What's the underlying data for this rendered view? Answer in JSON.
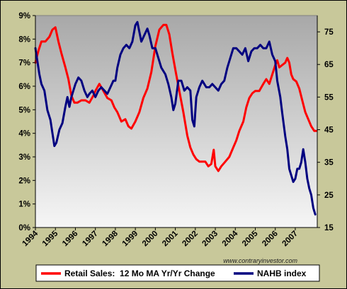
{
  "chart_data": {
    "type": "line",
    "title": "",
    "xlabel": "",
    "ylabel": "",
    "source_credit": "www.contraryinvestor.com",
    "x_range": [
      1994.0,
      2008.1
    ],
    "x_tick_labels": [
      "1994",
      "1995",
      "1996",
      "1997",
      "1998",
      "1999",
      "2000",
      "2001",
      "2002",
      "2003",
      "2004",
      "2005",
      "2006",
      "2007"
    ],
    "y_left": {
      "min": 0,
      "max": 9,
      "ticks": [
        0,
        1,
        2,
        3,
        4,
        5,
        6,
        7,
        8,
        9
      ],
      "tick_labels": [
        "0%",
        "1%",
        "2%",
        "3%",
        "4%",
        "5%",
        "6%",
        "7%",
        "8%",
        "9%"
      ]
    },
    "y_right": {
      "min": 15,
      "max": 80,
      "ticks": [
        15,
        25,
        35,
        45,
        55,
        65,
        75
      ],
      "tick_labels": [
        "15",
        "25",
        "35",
        "45",
        "55",
        "65",
        "75"
      ]
    },
    "grid": false,
    "legend_position": "bottom",
    "colors": {
      "retail": "#ff0000",
      "nahb": "#000080",
      "frame": "#c8c89a",
      "plot_top": "#a8a8a8",
      "plot_bottom": "#f6f6f6"
    },
    "series": [
      {
        "name": "Retail Sales:  12 Mo MA Yr/Yr Change",
        "axis": "left",
        "color": "#ff0000",
        "points": [
          [
            1994.0,
            7.0
          ],
          [
            1994.15,
            7.5
          ],
          [
            1994.3,
            7.9
          ],
          [
            1994.5,
            7.9
          ],
          [
            1994.7,
            8.1
          ],
          [
            1994.85,
            8.4
          ],
          [
            1995.0,
            8.5
          ],
          [
            1995.15,
            7.9
          ],
          [
            1995.3,
            7.4
          ],
          [
            1995.5,
            6.8
          ],
          [
            1995.65,
            6.3
          ],
          [
            1995.8,
            5.6
          ],
          [
            1995.95,
            5.3
          ],
          [
            1996.1,
            5.3
          ],
          [
            1996.3,
            5.4
          ],
          [
            1996.5,
            5.4
          ],
          [
            1996.7,
            5.3
          ],
          [
            1996.9,
            5.6
          ],
          [
            1997.0,
            5.8
          ],
          [
            1997.2,
            6.1
          ],
          [
            1997.4,
            5.8
          ],
          [
            1997.6,
            5.5
          ],
          [
            1997.8,
            5.4
          ],
          [
            1997.95,
            5.1
          ],
          [
            1998.1,
            4.9
          ],
          [
            1998.3,
            4.5
          ],
          [
            1998.5,
            4.6
          ],
          [
            1998.65,
            4.3
          ],
          [
            1998.8,
            4.2
          ],
          [
            1999.0,
            4.5
          ],
          [
            1999.2,
            4.9
          ],
          [
            1999.4,
            5.5
          ],
          [
            1999.6,
            5.9
          ],
          [
            1999.8,
            6.6
          ],
          [
            2000.0,
            7.7
          ],
          [
            2000.2,
            8.4
          ],
          [
            2000.4,
            8.6
          ],
          [
            2000.55,
            8.6
          ],
          [
            2000.7,
            8.2
          ],
          [
            2000.85,
            7.4
          ],
          [
            2001.0,
            6.7
          ],
          [
            2001.2,
            5.8
          ],
          [
            2001.4,
            4.9
          ],
          [
            2001.6,
            3.9
          ],
          [
            2001.75,
            3.4
          ],
          [
            2001.9,
            3.1
          ],
          [
            2002.05,
            2.9
          ],
          [
            2002.2,
            2.8
          ],
          [
            2002.35,
            2.8
          ],
          [
            2002.5,
            2.8
          ],
          [
            2002.65,
            2.6
          ],
          [
            2002.8,
            2.7
          ],
          [
            2002.92,
            3.3
          ],
          [
            2003.0,
            2.6
          ],
          [
            2003.15,
            2.4
          ],
          [
            2003.3,
            2.6
          ],
          [
            2003.5,
            2.8
          ],
          [
            2003.7,
            3.0
          ],
          [
            2003.9,
            3.4
          ],
          [
            2004.05,
            3.7
          ],
          [
            2004.2,
            4.1
          ],
          [
            2004.4,
            4.5
          ],
          [
            2004.55,
            5.1
          ],
          [
            2004.7,
            5.5
          ],
          [
            2004.85,
            5.7
          ],
          [
            2005.0,
            5.8
          ],
          [
            2005.2,
            5.8
          ],
          [
            2005.4,
            6.1
          ],
          [
            2005.55,
            6.3
          ],
          [
            2005.7,
            6.1
          ],
          [
            2005.85,
            6.5
          ],
          [
            2006.0,
            6.9
          ],
          [
            2006.1,
            7.1
          ],
          [
            2006.2,
            6.8
          ],
          [
            2006.35,
            6.9
          ],
          [
            2006.5,
            7.0
          ],
          [
            2006.6,
            7.2
          ],
          [
            2006.7,
            7.0
          ],
          [
            2006.8,
            6.5
          ],
          [
            2006.9,
            6.3
          ],
          [
            2007.05,
            6.2
          ],
          [
            2007.2,
            5.9
          ],
          [
            2007.35,
            5.4
          ],
          [
            2007.5,
            4.9
          ],
          [
            2007.65,
            4.6
          ],
          [
            2007.8,
            4.3
          ],
          [
            2007.95,
            4.1
          ],
          [
            2008.05,
            4.1
          ]
        ]
      },
      {
        "name": "NAHB index",
        "axis": "right",
        "color": "#000080",
        "points": [
          [
            1994.0,
            70
          ],
          [
            1994.1,
            66
          ],
          [
            1994.2,
            62
          ],
          [
            1994.3,
            59
          ],
          [
            1994.45,
            57
          ],
          [
            1994.6,
            51
          ],
          [
            1994.75,
            48
          ],
          [
            1994.85,
            44
          ],
          [
            1994.95,
            40
          ],
          [
            1995.05,
            41
          ],
          [
            1995.2,
            45
          ],
          [
            1995.35,
            47
          ],
          [
            1995.5,
            52
          ],
          [
            1995.6,
            55
          ],
          [
            1995.7,
            52
          ],
          [
            1995.8,
            55
          ],
          [
            1995.9,
            57
          ],
          [
            1996.0,
            59
          ],
          [
            1996.15,
            61
          ],
          [
            1996.3,
            60
          ],
          [
            1996.45,
            57
          ],
          [
            1996.6,
            55
          ],
          [
            1996.7,
            56
          ],
          [
            1996.85,
            57
          ],
          [
            1997.0,
            55
          ],
          [
            1997.15,
            57
          ],
          [
            1997.3,
            58
          ],
          [
            1997.45,
            57
          ],
          [
            1997.6,
            56
          ],
          [
            1997.75,
            58
          ],
          [
            1997.9,
            60
          ],
          [
            1998.0,
            60
          ],
          [
            1998.1,
            64
          ],
          [
            1998.25,
            68
          ],
          [
            1998.4,
            70
          ],
          [
            1998.55,
            71
          ],
          [
            1998.7,
            70
          ],
          [
            1998.85,
            72
          ],
          [
            1999.0,
            77
          ],
          [
            1999.1,
            78
          ],
          [
            1999.2,
            75
          ],
          [
            1999.3,
            72
          ],
          [
            1999.45,
            74
          ],
          [
            1999.6,
            76
          ],
          [
            1999.7,
            74
          ],
          [
            1999.85,
            70
          ],
          [
            2000.0,
            70
          ],
          [
            2000.15,
            67
          ],
          [
            2000.3,
            64
          ],
          [
            2000.5,
            62
          ],
          [
            2000.65,
            59
          ],
          [
            2000.8,
            55
          ],
          [
            2000.9,
            51
          ],
          [
            2001.0,
            53
          ],
          [
            2001.15,
            60
          ],
          [
            2001.3,
            60
          ],
          [
            2001.45,
            57
          ],
          [
            2001.6,
            58
          ],
          [
            2001.75,
            57
          ],
          [
            2001.85,
            48
          ],
          [
            2001.95,
            46
          ],
          [
            2002.05,
            55
          ],
          [
            2002.2,
            58
          ],
          [
            2002.35,
            60
          ],
          [
            2002.55,
            58
          ],
          [
            2002.7,
            58
          ],
          [
            2002.85,
            59
          ],
          [
            2003.0,
            58
          ],
          [
            2003.15,
            57
          ],
          [
            2003.3,
            59
          ],
          [
            2003.45,
            60
          ],
          [
            2003.6,
            64
          ],
          [
            2003.75,
            67
          ],
          [
            2003.9,
            70
          ],
          [
            2004.05,
            70
          ],
          [
            2004.2,
            69
          ],
          [
            2004.35,
            68
          ],
          [
            2004.5,
            70
          ],
          [
            2004.65,
            66
          ],
          [
            2004.8,
            69
          ],
          [
            2004.95,
            70
          ],
          [
            2005.1,
            70
          ],
          [
            2005.25,
            71
          ],
          [
            2005.4,
            70
          ],
          [
            2005.55,
            70
          ],
          [
            2005.7,
            72
          ],
          [
            2005.85,
            68
          ],
          [
            2006.0,
            66
          ],
          [
            2006.1,
            60
          ],
          [
            2006.25,
            55
          ],
          [
            2006.35,
            50
          ],
          [
            2006.5,
            43
          ],
          [
            2006.6,
            39
          ],
          [
            2006.7,
            33
          ],
          [
            2006.8,
            31
          ],
          [
            2006.9,
            29
          ],
          [
            2007.0,
            30
          ],
          [
            2007.1,
            33
          ],
          [
            2007.2,
            33
          ],
          [
            2007.3,
            35
          ],
          [
            2007.4,
            39
          ],
          [
            2007.5,
            35
          ],
          [
            2007.6,
            30
          ],
          [
            2007.7,
            27
          ],
          [
            2007.8,
            25
          ],
          [
            2007.9,
            21
          ],
          [
            2008.0,
            19
          ]
        ]
      }
    ]
  }
}
